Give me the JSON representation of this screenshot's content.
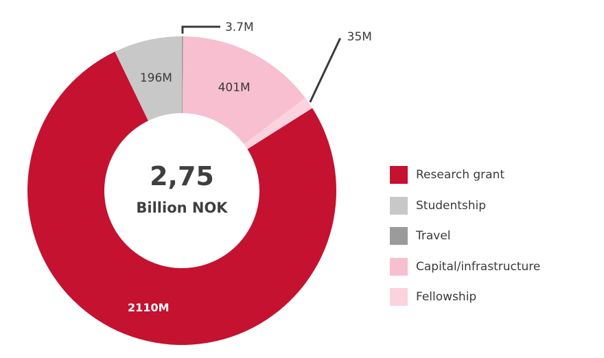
{
  "chart_data": {
    "type": "pie",
    "donut": true,
    "center_value": "2,75",
    "center_unit": "Billion NOK",
    "slices": [
      {
        "name": "Travel",
        "value": 3.7,
        "label": "3.7M",
        "color": "#9b9b9b"
      },
      {
        "name": "Capital/infrastructure",
        "value": 401,
        "label": "401M",
        "color": "#f7bfcf"
      },
      {
        "name": "Fellowship",
        "value": 35,
        "label": "35M",
        "color": "#fbd3de"
      },
      {
        "name": "Research grant",
        "value": 2110,
        "label": "2110M",
        "color": "#c41230"
      },
      {
        "name": "Studentship",
        "value": 196,
        "label": "196M",
        "color": "#c8c8c8"
      }
    ],
    "legend": {
      "placement": "right",
      "items": [
        {
          "label": "Research grant",
          "color": "#c41230"
        },
        {
          "label": "Studentship",
          "color": "#c8c8c8"
        },
        {
          "label": "Travel",
          "color": "#9b9b9b"
        },
        {
          "label": "Capital/infrastructure",
          "color": "#f7bfcf"
        },
        {
          "label": "Fellowship",
          "color": "#fbd3de"
        }
      ]
    },
    "callout_color": "#3a3a3a"
  }
}
